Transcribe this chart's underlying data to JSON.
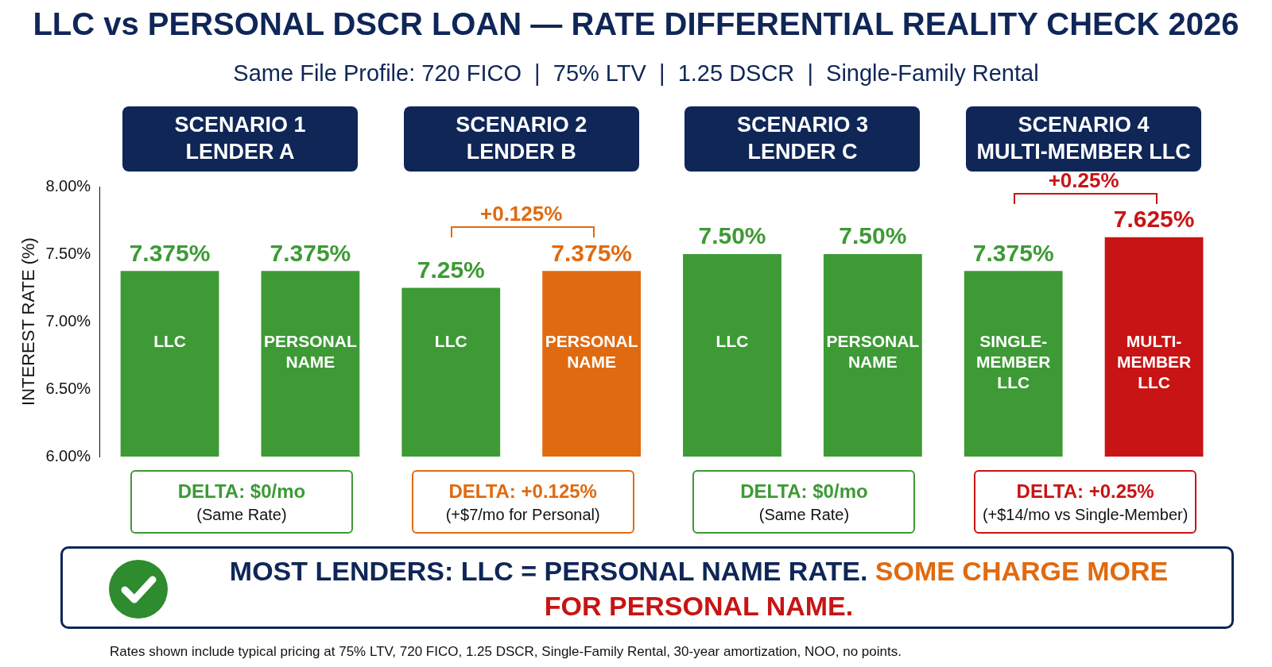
{
  "chart_data": {
    "type": "bar",
    "title": "LLC vs PERSONAL DSCR LOAN — RATE DIFFERENTIAL REALITY CHECK 2026",
    "subtitle": "Same File Profile: 720 FICO  |  75% LTV  |  1.25 DSCR  |  Single-Family Rental",
    "ylabel": "INTEREST RATE (%)",
    "categories": [
      "LLC",
      "PERSONAL NAME",
      "LLC",
      "PERSONAL NAME",
      "LLC",
      "PERSONAL NAME",
      "SINGLE-MEMBER LLC",
      "MULTI-MEMBER LLC"
    ],
    "values": [
      7.375,
      7.375,
      7.25,
      7.375,
      7.5,
      7.5,
      7.375,
      7.625
    ],
    "value_labels": [
      "7.375%",
      "7.375%",
      "7.25%",
      "7.375%",
      "7.50%",
      "7.50%",
      "7.375%",
      "7.625%"
    ],
    "colors": [
      "#3d9a35",
      "#3d9a35",
      "#3d9a35",
      "#e06a10",
      "#3d9a35",
      "#3d9a35",
      "#3d9a35",
      "#c81414"
    ],
    "ylim": [
      6,
      8
    ],
    "yticks": [
      {
        "value": 6,
        "label": "6.00%"
      },
      {
        "value": 6.5,
        "label": "6.50%"
      },
      {
        "value": 7,
        "label": "7.00%"
      },
      {
        "value": 7.5,
        "label": "7.50%"
      },
      {
        "value": 8,
        "label": "8.00%"
      }
    ],
    "grid": false,
    "legend": false,
    "annotations": [
      "SCENARIO 1\nLENDER A",
      "SCENARIO 2\nLENDER B",
      "SCENARIO 3\nLENDER C",
      "SCENARIO 4\nMULTI-MEMBER LLC",
      "DELTA: $0/mo\n(Same Rate)",
      "DELTA: +0.125%\n(+$7/mo for Personal)",
      "DELTA: $0/mo\n(Same Rate)",
      "DELTA: +0.25%\n(+$14/mo vs Single-Member)",
      "+0.125%",
      "+0.25%",
      "MOST LENDERS: LLC = PERSONAL NAME RATE.",
      "SOME CHARGE MORE",
      "FOR PERSONAL NAME.",
      "Rates shown include typical pricing at 75% LTV, 720 FICO, 1.25 DSCR, Single-Family Rental, 30-year amortization, NOO, no points."
    ]
  }
}
